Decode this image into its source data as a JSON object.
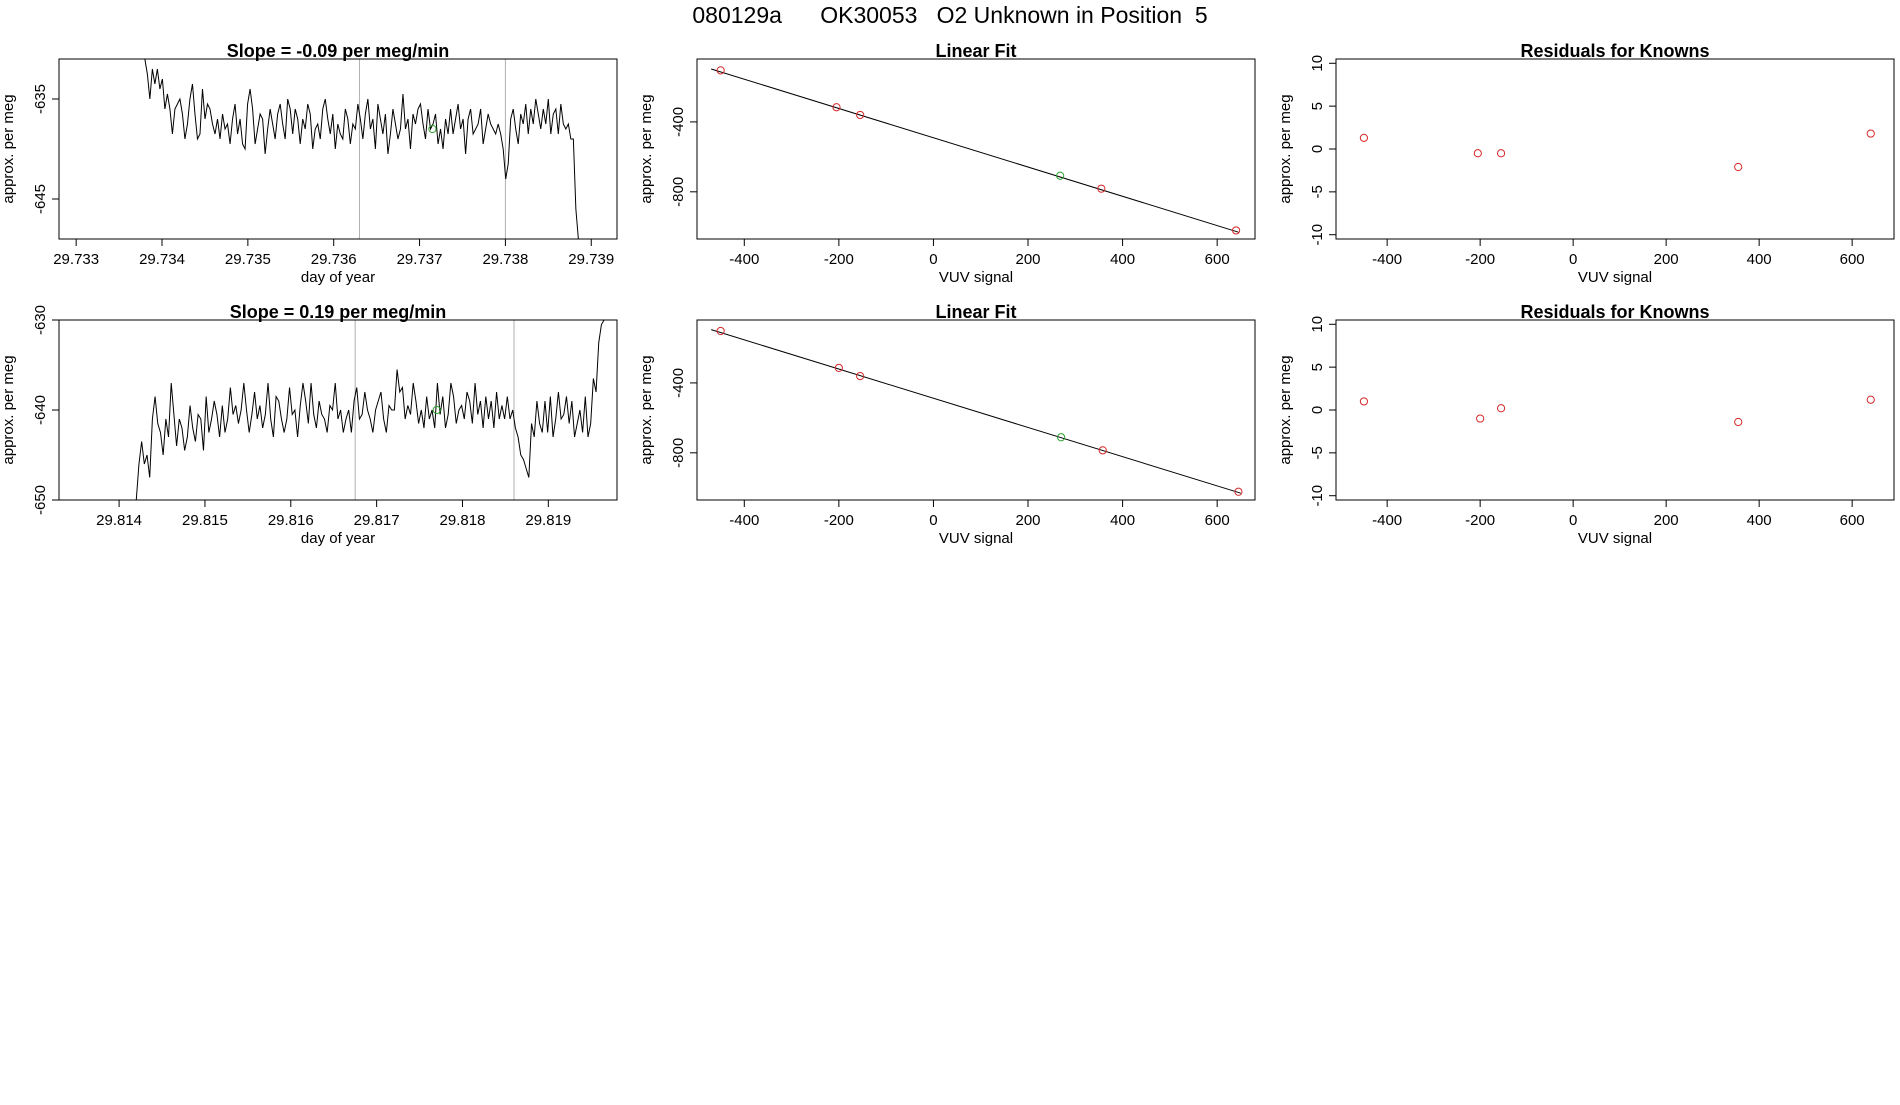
{
  "page_title": "080129a      OK30053   O2 Unknown in Position  5",
  "colors": {
    "line": "#000000",
    "known_point": "#d62728",
    "unknown_point": "#2ca02c",
    "vline": "#b0b0b0"
  },
  "chart_data": [
    {
      "type": "line",
      "title": "Slope =  -0.09  per meg/min",
      "xlabel": "day of year",
      "ylabel": "approx. per meg",
      "xlim": [
        29.7328,
        29.7393
      ],
      "ylim": [
        -649,
        -631
      ],
      "xticks": [
        "29.733",
        "29.734",
        "29.735",
        "29.736",
        "29.737",
        "29.738",
        "29.739"
      ],
      "yticks": [
        "-645",
        "-635"
      ],
      "vlines": [
        29.7363,
        29.738
      ],
      "series": [
        {
          "x_start": 29.7338,
          "x_end": 29.73885,
          "values": [
            -631,
            -632.5,
            -635,
            -632,
            -633.5,
            -632,
            -634,
            -633,
            -636,
            -634.5,
            -636,
            -638.5,
            -636,
            -635.5,
            -635,
            -636.5,
            -639,
            -637.5,
            -635,
            -633.5,
            -636.5,
            -639,
            -638.5,
            -634,
            -637,
            -635.5,
            -636,
            -637.5,
            -638.5,
            -637,
            -639,
            -636.5,
            -638,
            -637.5,
            -639.5,
            -637,
            -635.5,
            -638.5,
            -637,
            -639.5,
            -640,
            -635.5,
            -634,
            -636,
            -639.5,
            -638,
            -636.5,
            -637,
            -640.5,
            -638,
            -636,
            -637.5,
            -639,
            -636.5,
            -635.5,
            -637.5,
            -639,
            -635,
            -636,
            -638.5,
            -636,
            -637,
            -639.5,
            -637,
            -638,
            -635.5,
            -636.5,
            -640,
            -638,
            -637.5,
            -639,
            -636,
            -635,
            -637,
            -638.5,
            -636.5,
            -640,
            -637.5,
            -638.5,
            -639,
            -636,
            -637,
            -639.5,
            -637.5,
            -638,
            -635.5,
            -637,
            -639,
            -636.5,
            -635,
            -638,
            -637,
            -640,
            -635.5,
            -637,
            -638.5,
            -636.5,
            -640.5,
            -638.5,
            -636,
            -637.5,
            -639,
            -638,
            -634.5,
            -638,
            -637,
            -640,
            -636.5,
            -637.5,
            -636,
            -635.5,
            -637.5,
            -639,
            -636,
            -638,
            -637.5,
            -636.5,
            -639.5,
            -638,
            -640,
            -637,
            -638.5,
            -636,
            -638.5,
            -637,
            -635.5,
            -638,
            -637,
            -640.5,
            -637,
            -636,
            -638.5,
            -638,
            -637.5,
            -636,
            -639.5,
            -638,
            -636.5,
            -637.5,
            -638,
            -638.5,
            -637.5,
            -638.5,
            -640,
            -643,
            -641.5,
            -637,
            -636,
            -638,
            -639.5,
            -636.5,
            -637.5,
            -635.5,
            -638.5,
            -636,
            -637.5,
            -635,
            -636.5,
            -638,
            -636,
            -637.5,
            -635,
            -638.5,
            -636.5,
            -636,
            -638.5,
            -635.5,
            -637.5,
            -638,
            -637.5,
            -639,
            -639,
            -646,
            -649
          ]
        }
      ],
      "unknown_point": {
        "x": 29.73715,
        "y": -638
      }
    },
    {
      "type": "scatter",
      "title": "Linear Fit",
      "xlabel": "VUV signal",
      "ylabel": "approx. per meg",
      "xlim": [
        -500,
        680
      ],
      "ylim": [
        -1070,
        -40
      ],
      "xticks": [
        "-400",
        "-200",
        "0",
        "200",
        "400",
        "600"
      ],
      "yticks": [
        "-800",
        "-400"
      ],
      "fit_line": {
        "x": [
          -470,
          645
        ],
        "y": [
          -97,
          -1031
        ]
      },
      "known_points": {
        "x": [
          -450,
          -205,
          -155,
          355,
          640
        ],
        "y": [
          -105,
          -316,
          -360,
          -782,
          -1021
        ]
      },
      "unknown_point": {
        "x": 268,
        "y": -708
      }
    },
    {
      "type": "scatter",
      "title": "Residuals for Knowns",
      "xlabel": "VUV signal",
      "ylabel": "approx. per meg",
      "xlim": [
        -510,
        690
      ],
      "ylim": [
        -10.5,
        10.5
      ],
      "xticks": [
        "-400",
        "-200",
        "0",
        "200",
        "400",
        "600"
      ],
      "yticks": [
        "-10",
        "-5",
        "0",
        "5",
        "10"
      ],
      "known_points": {
        "x": [
          -450,
          -205,
          -155,
          355,
          640
        ],
        "y": [
          1.3,
          -0.5,
          -0.5,
          -2.1,
          1.8
        ]
      }
    },
    {
      "type": "line",
      "title": "Slope =  0.19  per meg/min",
      "xlabel": "day of year",
      "ylabel": "approx. per meg",
      "xlim": [
        29.8133,
        29.8198
      ],
      "ylim": [
        -650,
        -630
      ],
      "xticks": [
        "29.814",
        "29.815",
        "29.816",
        "29.817",
        "29.818",
        "29.819"
      ],
      "yticks": [
        "-650",
        "-640",
        "-630"
      ],
      "vlines": [
        29.81675,
        29.8186
      ],
      "series": [
        {
          "x_start": 29.8142,
          "x_end": 29.81965,
          "values": [
            -650,
            -646,
            -643.5,
            -646,
            -645,
            -647.5,
            -641,
            -638.5,
            -641.5,
            -642.5,
            -645,
            -641,
            -643,
            -637,
            -640.5,
            -644,
            -641,
            -642,
            -644.5,
            -643,
            -639.5,
            -642,
            -643.5,
            -640.5,
            -641,
            -644.5,
            -638.5,
            -642.5,
            -641,
            -639,
            -640.5,
            -643,
            -639.5,
            -642.5,
            -641,
            -637.5,
            -640.5,
            -639.5,
            -641.5,
            -640,
            -637,
            -640,
            -642.5,
            -640.5,
            -638,
            -641,
            -639.5,
            -642,
            -640.5,
            -637,
            -641,
            -643,
            -638.5,
            -639,
            -641,
            -642.5,
            -641,
            -637.5,
            -640.5,
            -640,
            -643,
            -639.5,
            -637,
            -639,
            -641.5,
            -637,
            -640.5,
            -642,
            -639,
            -640.5,
            -641,
            -642.5,
            -639.5,
            -640,
            -637,
            -641,
            -640,
            -642.5,
            -641,
            -640,
            -642.5,
            -639,
            -637.5,
            -641,
            -640.5,
            -638,
            -640,
            -641,
            -642.5,
            -640,
            -639,
            -638,
            -641,
            -642.5,
            -639.5,
            -640,
            -640,
            -635.5,
            -638,
            -637.5,
            -641,
            -639.5,
            -640.5,
            -637,
            -639,
            -641.5,
            -640,
            -642,
            -638.5,
            -641,
            -640,
            -642,
            -637,
            -640.5,
            -638.5,
            -642,
            -640.5,
            -637,
            -638.5,
            -641.5,
            -640,
            -639.5,
            -641,
            -638,
            -639,
            -641.5,
            -637,
            -640.5,
            -639,
            -642,
            -638.5,
            -641,
            -639,
            -642,
            -638,
            -641,
            -639.5,
            -641,
            -638.5,
            -641,
            -640,
            -642,
            -643,
            -645,
            -645.5,
            -646.5,
            -647.5,
            -641.5,
            -643,
            -639,
            -641.5,
            -642.5,
            -639,
            -642.5,
            -638.5,
            -643,
            -641,
            -638,
            -641,
            -640.5,
            -638.5,
            -641.5,
            -639,
            -643,
            -641.5,
            -640,
            -642.5,
            -638.5,
            -643,
            -641.5,
            -636.5,
            -638,
            -632.5,
            -630.5,
            -630
          ]
        }
      ],
      "unknown_point": {
        "x": 29.8177,
        "y": -640
      }
    },
    {
      "type": "scatter",
      "title": "Linear Fit",
      "xlabel": "VUV signal",
      "ylabel": "approx. per meg",
      "xlim": [
        -500,
        680
      ],
      "ylim": [
        -1070,
        -40
      ],
      "xticks": [
        "-400",
        "-200",
        "0",
        "200",
        "400",
        "600"
      ],
      "yticks": [
        "-800",
        "-400"
      ],
      "fit_line": {
        "x": [
          -470,
          650
        ],
        "y": [
          -95,
          -1031
        ]
      },
      "known_points": {
        "x": [
          -450,
          -200,
          -155,
          358,
          645
        ],
        "y": [
          -103,
          -314,
          -361,
          -786,
          -1023
        ]
      },
      "unknown_point": {
        "x": 270,
        "y": -711
      }
    },
    {
      "type": "scatter",
      "title": "Residuals for Knowns",
      "xlabel": "VUV signal",
      "ylabel": "approx. per meg",
      "xlim": [
        -510,
        690
      ],
      "ylim": [
        -10.5,
        10.5
      ],
      "xticks": [
        "-400",
        "-200",
        "0",
        "200",
        "400",
        "600"
      ],
      "yticks": [
        "-10",
        "-5",
        "0",
        "5",
        "10"
      ],
      "known_points": {
        "x": [
          -450,
          -200,
          -155,
          355,
          640
        ],
        "y": [
          1.0,
          -1.0,
          0.2,
          -1.4,
          1.2
        ]
      }
    }
  ]
}
